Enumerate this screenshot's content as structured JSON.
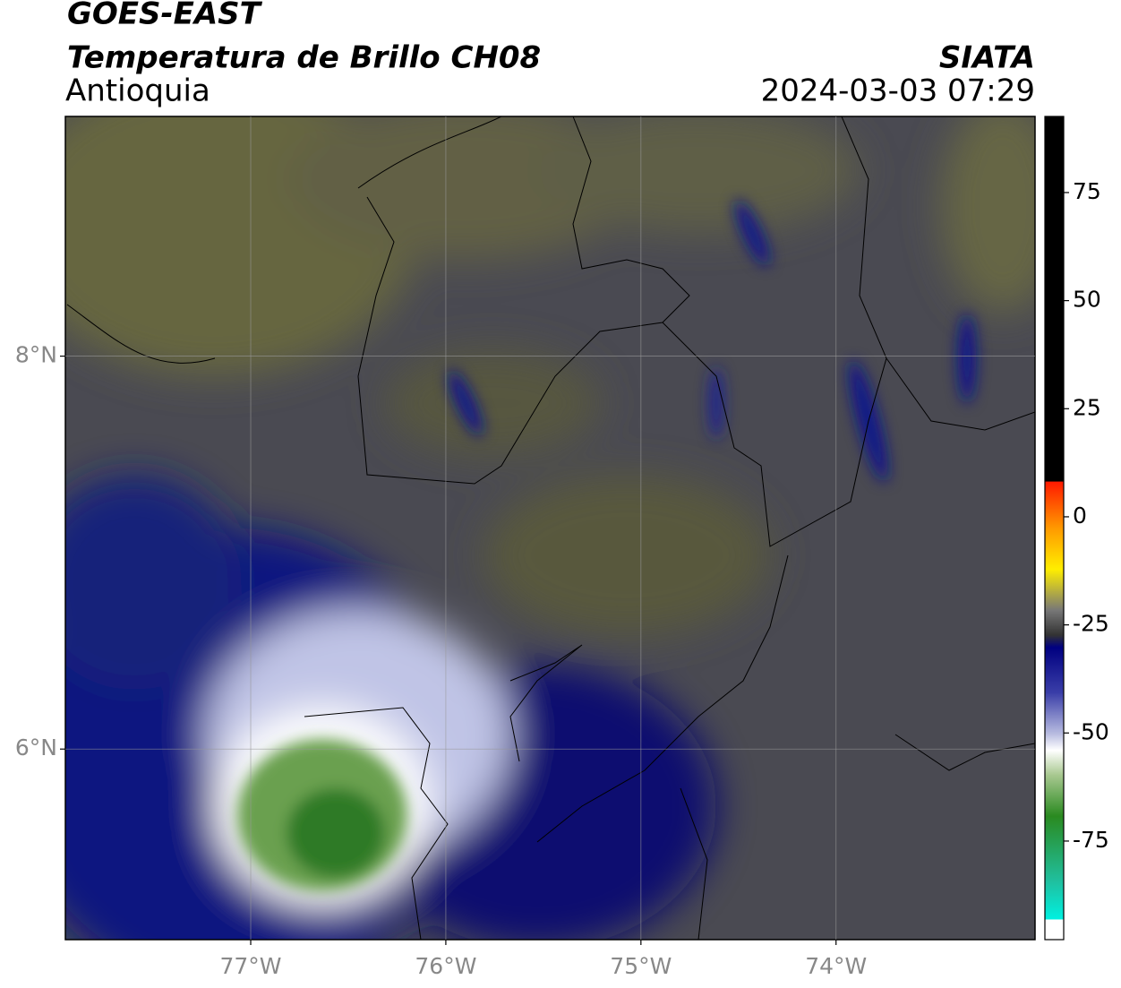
{
  "header": {
    "satellite": "GOES-EAST",
    "product": "Temperatura de Brillo CH08",
    "region": "Antioquia",
    "source": "SIATA",
    "datetime": "2024-03-03 07:29"
  },
  "map": {
    "lon_range": [
      -77.95,
      -72.98
    ],
    "lat_range": [
      5.03,
      9.22
    ],
    "grid": true,
    "lon_ticks": [
      {
        "value": -77,
        "label": "77°W"
      },
      {
        "value": -76,
        "label": "76°W"
      },
      {
        "value": -75,
        "label": "75°W"
      },
      {
        "value": -74,
        "label": "74°W"
      }
    ],
    "lat_ticks": [
      {
        "value": 8,
        "label": "8°N"
      },
      {
        "value": 6,
        "label": "6°N"
      }
    ]
  },
  "colorbar": {
    "range": [
      -97.8,
      92.6
    ],
    "ticks": [
      75,
      50,
      25,
      0,
      -25,
      -50,
      -75
    ]
  }
}
